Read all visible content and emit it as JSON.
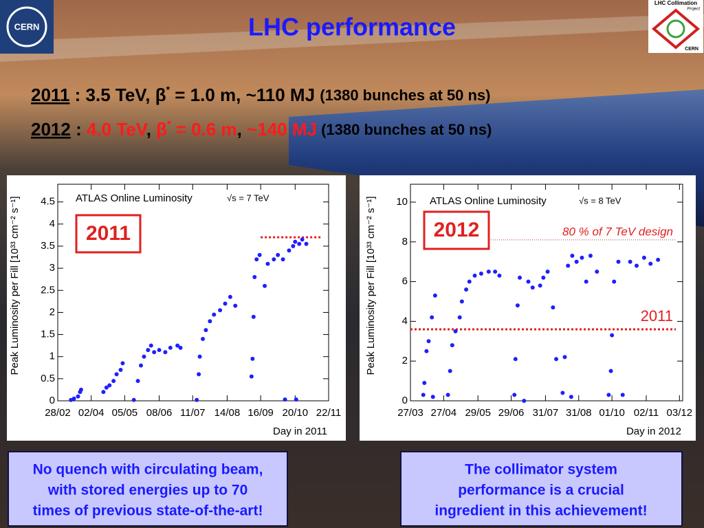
{
  "header": {
    "title": "LHC performance"
  },
  "logos": {
    "left": "CERN",
    "right_title": "LHC Collimation",
    "right_sub": "Project",
    "right_org": "CERN"
  },
  "summary_lines": [
    {
      "runs": [
        {
          "text": "2011",
          "style": "year"
        },
        {
          "text": " : 3.5 TeV, β",
          "style": "plain"
        },
        {
          "text": "*",
          "style": "sup"
        },
        {
          "text": " = 1.0 m, ~110 MJ ",
          "style": "plain"
        },
        {
          "text": "(1380 bunches at 50 ns)",
          "style": "note"
        }
      ]
    },
    {
      "runs": [
        {
          "text": "2012",
          "style": "year"
        },
        {
          "text": " : ",
          "style": "plain"
        },
        {
          "text": "4.0 TeV",
          "style": "red"
        },
        {
          "text": ", ",
          "style": "plain"
        },
        {
          "text": "β",
          "style": "red"
        },
        {
          "text": "*",
          "style": "redsup"
        },
        {
          "text": " = 0.6 m",
          "style": "red"
        },
        {
          "text": ", ",
          "style": "plain"
        },
        {
          "text": "~140 MJ",
          "style": "red"
        },
        {
          "text": " (1380 bunches at 50 ns)",
          "style": "note"
        }
      ]
    }
  ],
  "chart_data": [
    {
      "type": "scatter",
      "title": "ATLAS Online Luminosity",
      "subtitle": "√s = 7 TeV",
      "badge": "2011",
      "xlabel": "Day in 2011",
      "ylabel": "Peak Luminosity per Fill [10³³ cm⁻² s⁻¹]",
      "color": "#1f1fff",
      "xlim": [
        "28/02",
        "22/11"
      ],
      "xticks": [
        "28/02",
        "02/04",
        "05/05",
        "08/06",
        "11/07",
        "14/08",
        "16/09",
        "20/10",
        "22/11"
      ],
      "ylim": [
        0,
        4.9
      ],
      "yticks": [
        0,
        0.5,
        1,
        1.5,
        2,
        2.5,
        3,
        3.5,
        4,
        4.5
      ],
      "reference_lines": [
        {
          "y": 3.7,
          "x_start": "16/09"
        }
      ],
      "x": [
        "13/03",
        "16/03",
        "20/03",
        "22/03",
        "23/03",
        "14/04",
        "17/04",
        "20/04",
        "24/04",
        "27/04",
        "01/05",
        "03/05",
        "14/05",
        "18/05",
        "21/05",
        "24/05",
        "28/05",
        "31/05",
        "03/06",
        "08/06",
        "14/06",
        "19/06",
        "26/06",
        "29/06",
        "15/07",
        "17/07",
        "18/07",
        "21/07",
        "24/07",
        "28/07",
        "01/08",
        "07/08",
        "12/08",
        "17/08",
        "22/08",
        "07/09",
        "08/09",
        "09/09",
        "10/09",
        "12/09",
        "15/09",
        "20/09",
        "23/09",
        "29/09",
        "03/10",
        "08/10",
        "10/10",
        "14/10",
        "18/10",
        "20/10",
        "24/10",
        "27/10",
        "31/10",
        "21/10"
      ],
      "values": [
        0.02,
        0.05,
        0.1,
        0.2,
        0.25,
        0.2,
        0.3,
        0.35,
        0.45,
        0.6,
        0.7,
        0.85,
        0.02,
        0.45,
        0.8,
        1.0,
        1.15,
        1.25,
        1.1,
        1.15,
        1.1,
        1.2,
        1.25,
        1.2,
        0.02,
        0.6,
        1.0,
        1.4,
        1.6,
        1.8,
        1.95,
        2.05,
        2.2,
        2.35,
        2.15,
        0.55,
        0.95,
        1.9,
        2.8,
        3.2,
        3.3,
        2.6,
        3.1,
        3.2,
        3.3,
        3.2,
        0.03,
        3.4,
        3.5,
        3.6,
        3.55,
        3.65,
        3.55,
        0.03
      ]
    },
    {
      "type": "scatter",
      "title": "ATLAS Online Luminosity",
      "subtitle": "√s = 8 TeV",
      "badge": "2012",
      "xlabel": "Day in 2012",
      "ylabel": "Peak Luminosity per Fill [10³³ cm⁻² s⁻¹]",
      "color": "#1f1fff",
      "xlim": [
        "27/03",
        "06/12"
      ],
      "xticks": [
        "27/03",
        "27/04",
        "29/05",
        "29/06",
        "31/07",
        "31/08",
        "01/10",
        "02/11",
        "03/12"
      ],
      "ylim": [
        0,
        10.9
      ],
      "yticks": [
        0,
        2,
        4,
        6,
        8,
        10
      ],
      "reference_lines": [
        {
          "y": 8.1,
          "x_start": "10/06",
          "label": "80 % of 7 TeV design"
        },
        {
          "y": 3.6,
          "label": "2011"
        }
      ],
      "x": [
        "08/04",
        "09/04",
        "11/04",
        "13/04",
        "16/04",
        "19/04",
        "17/04",
        "01/05",
        "03/05",
        "05/05",
        "08/05",
        "12/05",
        "14/05",
        "18/05",
        "21/05",
        "26/05",
        "01/06",
        "08/06",
        "14/06",
        "18/06",
        "02/07",
        "03/07",
        "05/07",
        "07/07",
        "11/07",
        "15/07",
        "19/07",
        "26/07",
        "29/07",
        "02/08",
        "07/08",
        "10/08",
        "16/08",
        "18/08",
        "21/08",
        "25/08",
        "29/08",
        "03/09",
        "07/09",
        "11/09",
        "17/09",
        "28/09",
        "30/09",
        "01/10",
        "03/10",
        "07/10",
        "11/10",
        "18/10",
        "24/10",
        "31/10",
        "06/11",
        "13/11",
        "24/08"
      ],
      "values": [
        0.3,
        0.9,
        2.5,
        3.0,
        4.2,
        5.3,
        0.2,
        0.3,
        1.5,
        2.8,
        3.5,
        4.2,
        5.0,
        5.6,
        6.0,
        6.3,
        6.4,
        6.5,
        6.5,
        6.3,
        0.3,
        2.1,
        4.8,
        6.2,
        0.0,
        6.0,
        5.7,
        5.8,
        6.2,
        6.5,
        4.7,
        2.1,
        0.4,
        2.2,
        6.8,
        7.3,
        7.0,
        7.2,
        6.0,
        7.3,
        6.5,
        0.3,
        1.5,
        3.3,
        6.0,
        7.0,
        0.3,
        7.0,
        6.8,
        7.2,
        6.9,
        7.1,
        0.2
      ]
    }
  ],
  "notes": [
    {
      "lines": [
        "No quench with circulating beam,",
        "with stored energies up to 70",
        "times of previous state-of-the-art!"
      ]
    },
    {
      "lines": [
        "The collimator system",
        "performance is a crucial",
        "ingredient in this achievement!"
      ]
    }
  ]
}
